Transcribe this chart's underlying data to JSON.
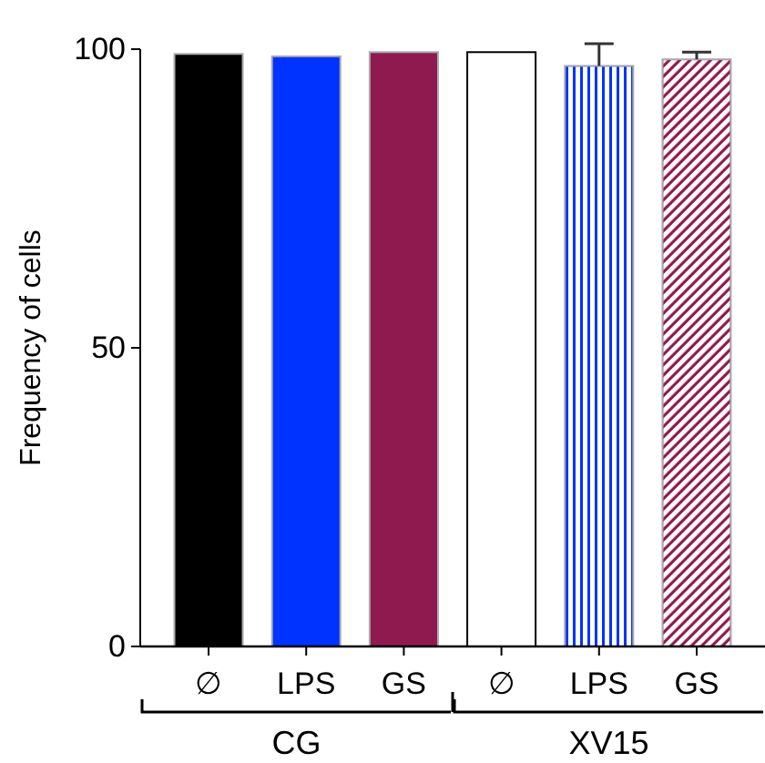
{
  "chart_data": {
    "type": "bar",
    "ylabel": "Frequency of cells",
    "categories": [
      "∅",
      "LPS",
      "GS",
      "∅",
      "LPS",
      "GS"
    ],
    "values": [
      99.2,
      98.8,
      99.5,
      99.5,
      97.2,
      98.3
    ],
    "errors": [
      null,
      null,
      null,
      null,
      3.7,
      1.2
    ],
    "colors": [
      "#000000",
      "#0033ff",
      "#8f1a4f",
      "#ffffff",
      "#0033ff",
      "#8f1a4f"
    ],
    "ylim": [
      0,
      100
    ],
    "yticks": [
      0,
      50,
      100
    ],
    "annotations": [
      "CG",
      "XV15"
    ]
  }
}
